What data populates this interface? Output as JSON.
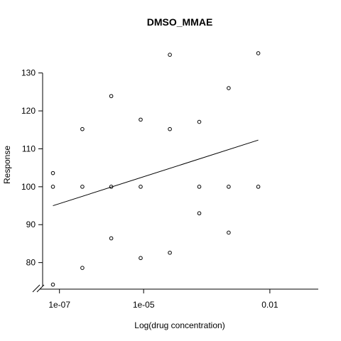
{
  "chart_data": {
    "type": "scatter",
    "title": "DMSO_MMAE",
    "xlabel": "Log(drug concentration)",
    "ylabel": "Response",
    "x_scale": "log10",
    "xlim_log10": [
      -7.4,
      -0.85
    ],
    "ylim": [
      73,
      138
    ],
    "x_ticks": [
      {
        "log10": -7,
        "label": "1e-07"
      },
      {
        "log10": -5,
        "label": "1e-05"
      },
      {
        "log10": -2,
        "label": "0.01"
      }
    ],
    "y_ticks": [
      80,
      90,
      100,
      110,
      120,
      130
    ],
    "axis_break": "x-axis",
    "points": [
      {
        "x": 7e-08,
        "y": 103.6
      },
      {
        "x": 7e-08,
        "y": 100.0
      },
      {
        "x": 7e-08,
        "y": 74.2
      },
      {
        "x": 3.5e-07,
        "y": 115.2
      },
      {
        "x": 3.5e-07,
        "y": 100.0
      },
      {
        "x": 3.5e-07,
        "y": 78.6
      },
      {
        "x": 1.7e-06,
        "y": 123.9
      },
      {
        "x": 1.7e-06,
        "y": 100.0
      },
      {
        "x": 1.7e-06,
        "y": 86.4
      },
      {
        "x": 8.5e-06,
        "y": 117.7
      },
      {
        "x": 8.5e-06,
        "y": 100.0
      },
      {
        "x": 8.5e-06,
        "y": 81.2
      },
      {
        "x": 4.2e-05,
        "y": 134.8
      },
      {
        "x": 4.2e-05,
        "y": 115.2
      },
      {
        "x": 4.2e-05,
        "y": 82.6
      },
      {
        "x": 0.00021,
        "y": 117.1
      },
      {
        "x": 0.00021,
        "y": 100.0
      },
      {
        "x": 0.00021,
        "y": 93.0
      },
      {
        "x": 0.00105,
        "y": 126.0
      },
      {
        "x": 0.00105,
        "y": 100.0
      },
      {
        "x": 0.00105,
        "y": 87.9
      },
      {
        "x": 0.0053,
        "y": 135.2
      },
      {
        "x": 0.0053,
        "y": 100.0
      }
    ],
    "fit_line": {
      "x": [
        7e-08,
        0.0053
      ],
      "y": [
        95.0,
        112.3
      ]
    },
    "grid": false,
    "legend": "none"
  }
}
